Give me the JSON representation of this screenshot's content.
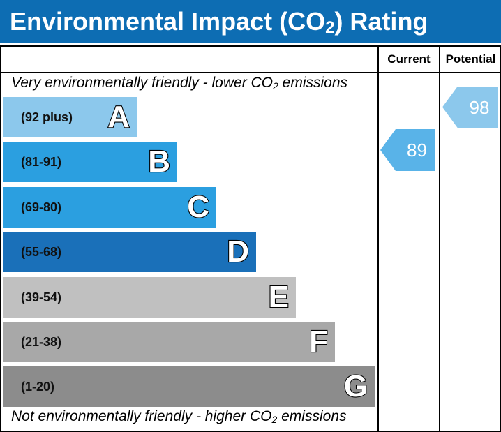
{
  "header": {
    "title_pre": "Environmental Impact (CO",
    "title_sub": "2",
    "title_post": ") Rating"
  },
  "columns": {
    "current": "Current",
    "potential": "Potential"
  },
  "captions": {
    "top_pre": "Very environmentally friendly - lower CO",
    "top_sub": "2",
    "top_post": " emissions",
    "bottom_pre": "Not environmentally friendly - higher CO",
    "bottom_sub": "2",
    "bottom_post": " emissions"
  },
  "chart_data": {
    "type": "bar",
    "categories": [
      "A",
      "B",
      "C",
      "D",
      "E",
      "F",
      "G"
    ],
    "ranges": [
      "(92 plus)",
      "(81-91)",
      "(69-80)",
      "(55-68)",
      "(39-54)",
      "(21-38)",
      "(1-20)"
    ],
    "colors": [
      "#8cc8ec",
      "#2b9fe0",
      "#2b9fe0",
      "#1a70b9",
      "#c0c0c0",
      "#a8a8a8",
      "#8c8c8c"
    ],
    "current": {
      "value": 89,
      "color": "#59b3e8"
    },
    "potential": {
      "value": 98,
      "color": "#8cc8ec"
    }
  }
}
